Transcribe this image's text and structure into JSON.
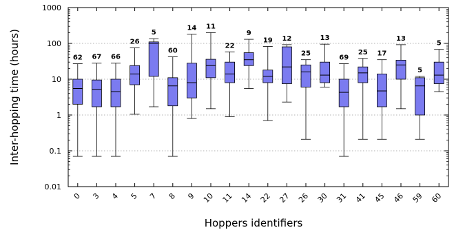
{
  "chart_data": {
    "type": "box",
    "title": "",
    "xlabel": "Hoppers identifiers",
    "ylabel": "Inter-hopping time (hours)",
    "y_scale": "log",
    "ylim": [
      0.01,
      1000
    ],
    "y_ticks": [
      {
        "value": 0.01,
        "label": "0.01"
      },
      {
        "value": 0.1,
        "label": "0.1"
      },
      {
        "value": 1,
        "label": "1"
      },
      {
        "value": 10,
        "label": "10"
      },
      {
        "value": 100,
        "label": "100"
      },
      {
        "value": 1000,
        "label": "1000"
      }
    ],
    "grid": true,
    "box_color": "#7b7bf0",
    "categories": [
      "0",
      "3",
      "4",
      "5",
      "7",
      "8",
      "9",
      "10",
      "11",
      "14",
      "22",
      "27",
      "26",
      "30",
      "31",
      "41",
      "45",
      "46",
      "59",
      "60"
    ],
    "counts": [
      "62",
      "67",
      "66",
      "26",
      "5",
      "60",
      "14",
      "11",
      "22",
      "9",
      "19",
      "12",
      "25",
      "13",
      "69",
      "25",
      "17",
      "13",
      "5",
      "5"
    ],
    "boxes": [
      {
        "min": 0.07,
        "q1": 2.0,
        "median": 5.5,
        "q3": 10,
        "max": 27
      },
      {
        "min": 0.07,
        "q1": 1.7,
        "median": 5.2,
        "q3": 9.5,
        "max": 28
      },
      {
        "min": 0.07,
        "q1": 1.7,
        "median": 4.5,
        "q3": 10,
        "max": 28
      },
      {
        "min": 1.05,
        "q1": 7,
        "median": 14,
        "q3": 24,
        "max": 75
      },
      {
        "min": 1.7,
        "q1": 12,
        "median": 100,
        "q3": 110,
        "max": 135
      },
      {
        "min": 0.07,
        "q1": 1.8,
        "median": 6.5,
        "q3": 11,
        "max": 42
      },
      {
        "min": 0.8,
        "q1": 3.0,
        "median": 8,
        "q3": 28,
        "max": 180
      },
      {
        "min": 1.5,
        "q1": 11,
        "median": 24,
        "q3": 36,
        "max": 200
      },
      {
        "min": 0.9,
        "q1": 8,
        "median": 14,
        "q3": 30,
        "max": 58
      },
      {
        "min": 5.5,
        "q1": 24,
        "median": 35,
        "q3": 55,
        "max": 130
      },
      {
        "min": 0.7,
        "q1": 8,
        "median": 12,
        "q3": 18,
        "max": 82
      },
      {
        "min": 2.3,
        "q1": 7.5,
        "median": 22,
        "q3": 80,
        "max": 92
      },
      {
        "min": 0.21,
        "q1": 6,
        "median": 16,
        "q3": 25,
        "max": 35
      },
      {
        "min": 6,
        "q1": 8,
        "median": 13,
        "q3": 30,
        "max": 95
      },
      {
        "min": 0.07,
        "q1": 1.7,
        "median": 4.3,
        "q3": 10,
        "max": 27
      },
      {
        "min": 0.21,
        "q1": 8,
        "median": 15,
        "q3": 22,
        "max": 38
      },
      {
        "min": 0.21,
        "q1": 1.7,
        "median": 4.7,
        "q3": 14,
        "max": 35
      },
      {
        "min": 1.5,
        "q1": 10,
        "median": 25,
        "q3": 34,
        "max": 92
      },
      {
        "min": 0.21,
        "q1": 1.0,
        "median": 6.5,
        "q3": 11,
        "max": 12
      },
      {
        "min": 4.5,
        "q1": 7.5,
        "median": 13,
        "q3": 30,
        "max": 68
      }
    ]
  }
}
